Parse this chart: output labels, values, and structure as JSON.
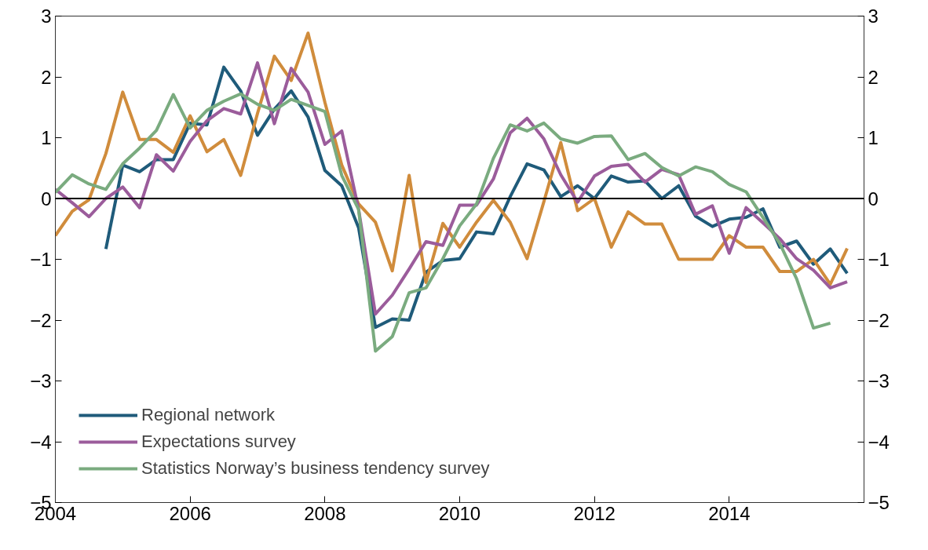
{
  "chart_data": {
    "type": "line",
    "legend": "bottom left",
    "grid": false,
    "marker": "none",
    "line_style": "solid",
    "x": [
      2004.0,
      2004.25,
      2004.5,
      2004.75,
      2005.0,
      2005.25,
      2005.5,
      2005.75,
      2006.0,
      2006.25,
      2006.5,
      2006.75,
      2007.0,
      2007.25,
      2007.5,
      2007.75,
      2008.0,
      2008.25,
      2008.5,
      2008.75,
      2009.0,
      2009.25,
      2009.5,
      2009.75,
      2010.0,
      2010.25,
      2010.5,
      2010.75,
      2011.0,
      2011.25,
      2011.5,
      2011.75,
      2012.0,
      2012.25,
      2012.5,
      2012.75,
      2013.0,
      2013.25,
      2013.5,
      2013.75,
      2014.0,
      2014.25,
      2014.5,
      2014.75,
      2015.0,
      2015.25,
      2015.5,
      2015.75
    ],
    "xlim": [
      2004,
      2016
    ],
    "xticks": [
      2004,
      2006,
      2008,
      2010,
      2012,
      2014
    ],
    "ylim": [
      -5,
      3
    ],
    "yticks": [
      {
        "value": -5,
        "label": "−5"
      },
      {
        "value": -4,
        "label": "−4"
      },
      {
        "value": -3,
        "label": "−3"
      },
      {
        "value": -2,
        "label": "−2"
      },
      {
        "value": -1,
        "label": "−1"
      },
      0,
      1,
      2,
      3
    ],
    "y2lim": [
      -5,
      3
    ],
    "y2ticks": [
      {
        "value": -5,
        "label": "−5"
      },
      {
        "value": -4,
        "label": "−4"
      },
      {
        "value": -3,
        "label": "−3"
      },
      {
        "value": -2,
        "label": "−2"
      },
      {
        "value": -1,
        "label": "−1"
      },
      0,
      1,
      2,
      3
    ],
    "ref_lines": [
      {
        "axis": "y",
        "value": 0,
        "color": "#000000",
        "line_style": "solid"
      }
    ],
    "series": [
      {
        "name": "Regional network",
        "color": "#1f5b7a",
        "values": [
          null,
          null,
          null,
          -0.83,
          0.55,
          0.44,
          0.64,
          0.64,
          1.24,
          1.21,
          2.16,
          1.77,
          1.04,
          1.47,
          1.77,
          1.34,
          0.46,
          0.21,
          -0.48,
          -2.12,
          -1.98,
          -2.0,
          -1.21,
          -1.02,
          -0.99,
          -0.55,
          -0.58,
          0.03,
          0.57,
          0.47,
          0.03,
          0.21,
          0.0,
          0.37,
          0.27,
          0.29,
          0.0,
          0.21,
          -0.29,
          -0.46,
          -0.34,
          -0.31,
          -0.17,
          -0.8,
          -0.7,
          -1.08,
          -0.83,
          -1.23
        ]
      },
      {
        "color": "#d08c3c",
        "values": [
          -0.61,
          -0.21,
          -0.02,
          0.74,
          1.75,
          0.97,
          0.97,
          0.76,
          1.36,
          0.77,
          0.97,
          0.38,
          1.4,
          2.34,
          1.94,
          2.72,
          1.58,
          0.55,
          -0.09,
          -0.39,
          -1.19,
          0.38,
          -1.38,
          -0.41,
          -0.8,
          -0.39,
          -0.03,
          -0.39,
          -0.99,
          -0.05,
          0.92,
          -0.2,
          0.0,
          -0.8,
          -0.22,
          -0.42,
          -0.42,
          -1.0,
          -1.0,
          -1.0,
          -0.61,
          -0.8,
          -0.8,
          -1.2,
          -1.2,
          -1.0,
          -1.41,
          -0.82
        ]
      },
      {
        "name": "Expectations survey",
        "color": "#9b5c9b",
        "values": [
          0.15,
          -0.07,
          -0.3,
          0.0,
          0.19,
          -0.15,
          0.72,
          0.45,
          0.94,
          1.28,
          1.48,
          1.39,
          2.23,
          1.23,
          2.14,
          1.75,
          0.89,
          1.11,
          -0.18,
          -1.9,
          -1.59,
          -1.16,
          -0.71,
          -0.77,
          -0.11,
          -0.11,
          0.32,
          1.08,
          1.32,
          0.98,
          0.39,
          -0.06,
          0.37,
          0.53,
          0.56,
          0.27,
          0.48,
          0.39,
          -0.26,
          -0.12,
          -0.9,
          -0.15,
          -0.4,
          -0.66,
          -0.99,
          -1.18,
          -1.47,
          -1.37
        ]
      },
      {
        "name": "Statistics Norway’s business tendency survey",
        "color": "#7aab7f",
        "values": [
          0.1,
          0.39,
          0.24,
          0.15,
          0.57,
          0.83,
          1.12,
          1.71,
          1.16,
          1.45,
          1.6,
          1.72,
          1.55,
          1.45,
          1.63,
          1.53,
          1.43,
          0.38,
          -0.18,
          -2.51,
          -2.27,
          -1.55,
          -1.47,
          -0.99,
          -0.45,
          -0.09,
          0.66,
          1.21,
          1.11,
          1.24,
          0.98,
          0.91,
          1.02,
          1.03,
          0.64,
          0.74,
          0.51,
          0.37,
          0.52,
          0.44,
          0.23,
          0.11,
          -0.31,
          -0.74,
          -1.32,
          -2.13,
          -2.05,
          null
        ]
      }
    ]
  }
}
